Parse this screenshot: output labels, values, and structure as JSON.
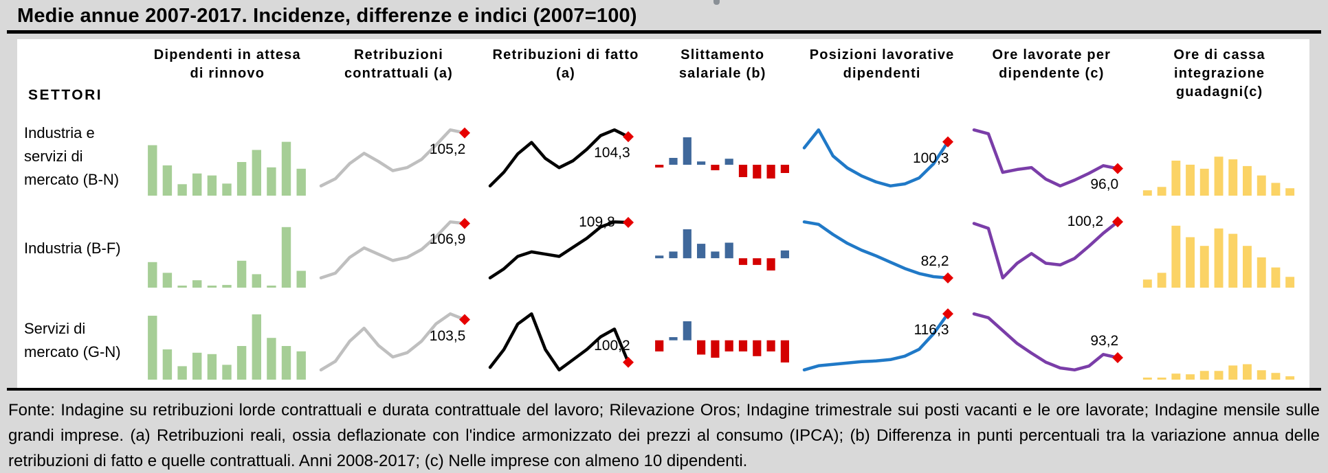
{
  "page": {
    "title": "Medie annue 2007-2017. Incidenze, differenze e indici (2007=100)",
    "footnote": "Fonte: Indagine su retribuzioni lorde contrattuali e durata contrattuale del lavoro; Rilevazione Oros; Indagine trimestrale sui posti vacanti e le ore lavorate; Indagine mensile sulle grandi imprese. (a) Retribuzioni reali, ossia deflazionate con l'indice armonizzato dei prezzi al consumo (IPCA); (b) Differenza in punti percentuali tra la variazione annua delle retribuzioni di fatto e quelle contrattuali. Anni 2008-2017; (c) Nelle imprese con almeno 10 dipendenti."
  },
  "table": {
    "settori_label": "SETTORI",
    "columns": [
      {
        "label": "Dipendenti in attesa di rinnovo"
      },
      {
        "label": "Retribuzioni contrattuali (a)"
      },
      {
        "label": "Retribuzioni di fatto (a)"
      },
      {
        "label": "Slittamento salariale (b)"
      },
      {
        "label": "Posizioni lavorative dipendenti"
      },
      {
        "label": "Ore lavorate per dipendente (c)"
      },
      {
        "label": "Ore di cassa integrazione guadagni(c)"
      }
    ],
    "rows": [
      {
        "label": "Industria e servizi di mercato (B-N)"
      },
      {
        "label": "Industria (B-F)"
      },
      {
        "label": "Servizi di mercato (G-N)"
      }
    ]
  },
  "colors": {
    "background": "#D9D9D9",
    "panel": "#FFFFFF",
    "green_bars": "#A6CE96",
    "gray_line": "#BFBFBF",
    "black_line": "#000000",
    "blue_bar": "#3F689B",
    "red_bar": "#D40000",
    "blue_line": "#2079C7",
    "purple_line": "#7A3DA8",
    "yellow_bars": "#FBD365",
    "red_marker": "#E60000"
  },
  "chart_data": [
    {
      "type": "bar",
      "sector": "Industria e servizi di mercato (B-N)",
      "measure": "Dipendenti in attesa di rinnovo (incidenze)",
      "x": [
        2007,
        2008,
        2009,
        2010,
        2011,
        2012,
        2013,
        2014,
        2015,
        2016,
        2017
      ],
      "values": [
        75,
        45,
        17,
        33,
        30,
        18,
        50,
        68,
        42,
        80,
        40
      ],
      "ylim": [
        0,
        100
      ],
      "color": "#A6CE96"
    },
    {
      "type": "line",
      "sector": "Industria e servizi di mercato (B-N)",
      "measure": "Retribuzioni contrattuali (a), indice 2007=100",
      "x": [
        2007,
        2008,
        2009,
        2010,
        2011,
        2012,
        2013,
        2014,
        2015,
        2016,
        2017
      ],
      "values": [
        100,
        100.7,
        102.2,
        103.2,
        102.4,
        101.5,
        101.8,
        102.6,
        104.0,
        105.5,
        105.2
      ],
      "last_value": 105.2,
      "value_label": "105,2",
      "label_pos": "below",
      "color": "#BFBFBF"
    },
    {
      "type": "line",
      "sector": "Industria e servizi di mercato (B-N)",
      "measure": "Retribuzioni di fatto (a), indice 2007=100",
      "x": [
        2007,
        2008,
        2009,
        2010,
        2011,
        2012,
        2013,
        2014,
        2015,
        2016,
        2017
      ],
      "values": [
        100,
        101.2,
        102.8,
        103.8,
        102.4,
        101.6,
        102.2,
        103.2,
        104.4,
        104.9,
        104.3
      ],
      "last_value": 104.3,
      "value_label": "104,3",
      "label_pos": "below",
      "color": "#000000"
    },
    {
      "type": "winloss",
      "sector": "Industria e servizi di mercato (B-N)",
      "measure": "Slittamento salariale (b), punti percentuali",
      "x": [
        2008,
        2009,
        2010,
        2011,
        2012,
        2013,
        2014,
        2015,
        2016,
        2017
      ],
      "values": [
        -0.1,
        0.25,
        1.0,
        0.12,
        -0.2,
        0.22,
        -0.45,
        -0.5,
        -0.5,
        -0.3
      ],
      "color_pos": "#3F689B",
      "color_neg": "#D40000"
    },
    {
      "type": "line",
      "sector": "Industria e servizi di mercato (B-N)",
      "measure": "Posizioni lavorative dipendenti, indice 2007=100",
      "x": [
        2007,
        2008,
        2009,
        2010,
        2011,
        2012,
        2013,
        2014,
        2015,
        2016,
        2017
      ],
      "values": [
        100,
        100.9,
        99.6,
        99.0,
        98.6,
        98.3,
        98.1,
        98.2,
        98.5,
        99.2,
        100.3
      ],
      "last_value": 100.3,
      "value_label": "100,3",
      "label_pos": "below",
      "color": "#2079C7"
    },
    {
      "type": "line",
      "sector": "Industria e servizi di mercato (B-N)",
      "measure": "Ore lavorate per dipendente (c), indice 2007=100",
      "x": [
        2007,
        2008,
        2009,
        2010,
        2011,
        2012,
        2013,
        2014,
        2015,
        2016,
        2017
      ],
      "values": [
        100,
        99.6,
        95.6,
        95.9,
        96.1,
        94.9,
        94.2,
        94.8,
        95.5,
        96.3,
        96.0
      ],
      "last_value": 96.0,
      "value_label": "96,0",
      "label_pos": "below",
      "color": "#7A3DA8"
    },
    {
      "type": "bar",
      "sector": "Industria e servizi di mercato (B-N)",
      "measure": "Ore di cassa integrazione guadagni (c)",
      "x": [
        2007,
        2008,
        2009,
        2010,
        2011,
        2012,
        2013,
        2014,
        2015,
        2016,
        2017
      ],
      "values": [
        8,
        13,
        52,
        46,
        40,
        58,
        54,
        44,
        30,
        19,
        11
      ],
      "ylim": [
        0,
        100
      ],
      "color": "#FBD365"
    },
    {
      "type": "bar",
      "sector": "Industria (B-F)",
      "measure": "Dipendenti in attesa di rinnovo (incidenze)",
      "x": [
        2007,
        2008,
        2009,
        2010,
        2011,
        2012,
        2013,
        2014,
        2015,
        2016,
        2017
      ],
      "values": [
        38,
        22,
        3,
        11,
        3,
        4,
        40,
        20,
        3,
        90,
        25
      ],
      "ylim": [
        0,
        100
      ],
      "color": "#A6CE96"
    },
    {
      "type": "line",
      "sector": "Industria (B-F)",
      "measure": "Retribuzioni contrattuali (a), indice 2007=100",
      "x": [
        2007,
        2008,
        2009,
        2010,
        2011,
        2012,
        2013,
        2014,
        2015,
        2016,
        2017
      ],
      "values": [
        100,
        100.6,
        102.6,
        103.8,
        103.0,
        102.2,
        102.6,
        103.6,
        105.2,
        107.1,
        106.9
      ],
      "last_value": 106.9,
      "value_label": "106,9",
      "label_pos": "below",
      "color": "#BFBFBF"
    },
    {
      "type": "line",
      "sector": "Industria (B-F)",
      "measure": "Retribuzioni di fatto (a), indice 2007=100",
      "x": [
        2007,
        2008,
        2009,
        2010,
        2011,
        2012,
        2013,
        2014,
        2015,
        2016,
        2017
      ],
      "values": [
        100,
        101.6,
        103.8,
        104.6,
        104.2,
        103.8,
        105.4,
        107.0,
        109.0,
        109.9,
        109.8
      ],
      "last_value": 109.8,
      "value_label": "109,8",
      "label_pos": "left",
      "color": "#000000"
    },
    {
      "type": "winloss",
      "sector": "Industria (B-F)",
      "measure": "Slittamento salariale (b), punti percentuali",
      "x": [
        2008,
        2009,
        2010,
        2011,
        2012,
        2013,
        2014,
        2015,
        2016,
        2017
      ],
      "values": [
        0.12,
        0.3,
        1.3,
        0.65,
        0.3,
        0.7,
        -0.3,
        -0.3,
        -0.55,
        0.35
      ],
      "color_pos": "#3F689B",
      "color_neg": "#D40000"
    },
    {
      "type": "line",
      "sector": "Industria (B-F)",
      "measure": "Posizioni lavorative dipendenti, indice 2007=100",
      "x": [
        2007,
        2008,
        2009,
        2010,
        2011,
        2012,
        2013,
        2014,
        2015,
        2016,
        2017
      ],
      "values": [
        100,
        99.2,
        96.0,
        93.2,
        91.0,
        89.2,
        87.2,
        85.2,
        83.6,
        82.6,
        82.2
      ],
      "last_value": 82.2,
      "value_label": "82,2",
      "label_pos": "above",
      "color": "#2079C7"
    },
    {
      "type": "line",
      "sector": "Industria (B-F)",
      "measure": "Ore lavorate per dipendente (c), indice 2007=100",
      "x": [
        2007,
        2008,
        2009,
        2010,
        2011,
        2012,
        2013,
        2014,
        2015,
        2016,
        2017
      ],
      "values": [
        100,
        99.4,
        93.3,
        95.1,
        96.3,
        95.1,
        94.9,
        95.7,
        97.2,
        98.8,
        100.2
      ],
      "last_value": 100.2,
      "value_label": "100,2",
      "label_pos": "left",
      "color": "#7A3DA8"
    },
    {
      "type": "bar",
      "sector": "Industria (B-F)",
      "measure": "Ore di cassa integrazione guadagni (c)",
      "x": [
        2007,
        2008,
        2009,
        2010,
        2011,
        2012,
        2013,
        2014,
        2015,
        2016,
        2017
      ],
      "values": [
        12,
        22,
        92,
        75,
        62,
        88,
        80,
        62,
        45,
        30,
        16
      ],
      "ylim": [
        0,
        100
      ],
      "color": "#FBD365"
    },
    {
      "type": "bar",
      "sector": "Servizi di mercato (G-N)",
      "measure": "Dipendenti in attesa di rinnovo (incidenze)",
      "x": [
        2007,
        2008,
        2009,
        2010,
        2011,
        2012,
        2013,
        2014,
        2015,
        2016,
        2017
      ],
      "values": [
        95,
        45,
        20,
        40,
        38,
        22,
        50,
        97,
        62,
        50,
        42
      ],
      "ylim": [
        0,
        100
      ],
      "color": "#A6CE96"
    },
    {
      "type": "line",
      "sector": "Servizi di mercato (G-N)",
      "measure": "Retribuzioni contrattuali (a), indice 2007=100",
      "x": [
        2007,
        2008,
        2009,
        2010,
        2011,
        2012,
        2013,
        2014,
        2015,
        2016,
        2017
      ],
      "values": [
        100,
        100.6,
        102.0,
        102.9,
        101.7,
        100.9,
        101.2,
        102.0,
        103.2,
        103.9,
        103.5
      ],
      "last_value": 103.5,
      "value_label": "103,5",
      "label_pos": "below",
      "color": "#BFBFBF"
    },
    {
      "type": "line",
      "sector": "Servizi di mercato (G-N)",
      "measure": "Retribuzioni di fatto (a), indice 2007=100",
      "x": [
        2007,
        2008,
        2009,
        2010,
        2011,
        2012,
        2013,
        2014,
        2015,
        2016,
        2017
      ],
      "values": [
        100,
        100.7,
        101.7,
        102.1,
        100.7,
        99.9,
        100.3,
        100.7,
        101.2,
        101.5,
        100.2
      ],
      "last_value": 100.2,
      "value_label": "100,2",
      "label_pos": "above",
      "color": "#000000"
    },
    {
      "type": "winloss",
      "sector": "Servizi di mercato (G-N)",
      "measure": "Slittamento salariale (b), punti percentuali",
      "x": [
        2008,
        2009,
        2010,
        2011,
        2012,
        2013,
        2014,
        2015,
        2016,
        2017
      ],
      "values": [
        -0.35,
        0.1,
        0.6,
        -0.45,
        -0.55,
        -0.35,
        -0.35,
        -0.5,
        -0.35,
        -0.7
      ],
      "color_pos": "#3F689B",
      "color_neg": "#D40000"
    },
    {
      "type": "line",
      "sector": "Servizi di mercato (G-N)",
      "measure": "Posizioni lavorative dipendenti, indice 2007=100",
      "x": [
        2007,
        2008,
        2009,
        2010,
        2011,
        2012,
        2013,
        2014,
        2015,
        2016,
        2017
      ],
      "values": [
        100,
        101.2,
        101.6,
        102.0,
        102.4,
        102.6,
        103.0,
        104.0,
        106.0,
        110.5,
        116.3
      ],
      "last_value": 116.3,
      "value_label": "116,3",
      "label_pos": "below",
      "color": "#2079C7"
    },
    {
      "type": "line",
      "sector": "Servizi di mercato (G-N)",
      "measure": "Ore lavorate per dipendente (c), indice 2007=100",
      "x": [
        2007,
        2008,
        2009,
        2010,
        2011,
        2012,
        2013,
        2014,
        2015,
        2016,
        2017
      ],
      "values": [
        100,
        99.4,
        97.4,
        95.4,
        93.9,
        92.5,
        91.6,
        91.3,
        91.9,
        93.7,
        93.2
      ],
      "last_value": 93.2,
      "value_label": "93,2",
      "label_pos": "above",
      "color": "#7A3DA8"
    },
    {
      "type": "bar",
      "sector": "Servizi di mercato (G-N)",
      "measure": "Ore di cassa integrazione guadagni (c)",
      "x": [
        2007,
        2008,
        2009,
        2010,
        2011,
        2012,
        2013,
        2014,
        2015,
        2016,
        2017
      ],
      "values": [
        3,
        3,
        9,
        8,
        13,
        13,
        21,
        23,
        14,
        10,
        5
      ],
      "ylim": [
        0,
        100
      ],
      "color": "#FBD365"
    }
  ]
}
